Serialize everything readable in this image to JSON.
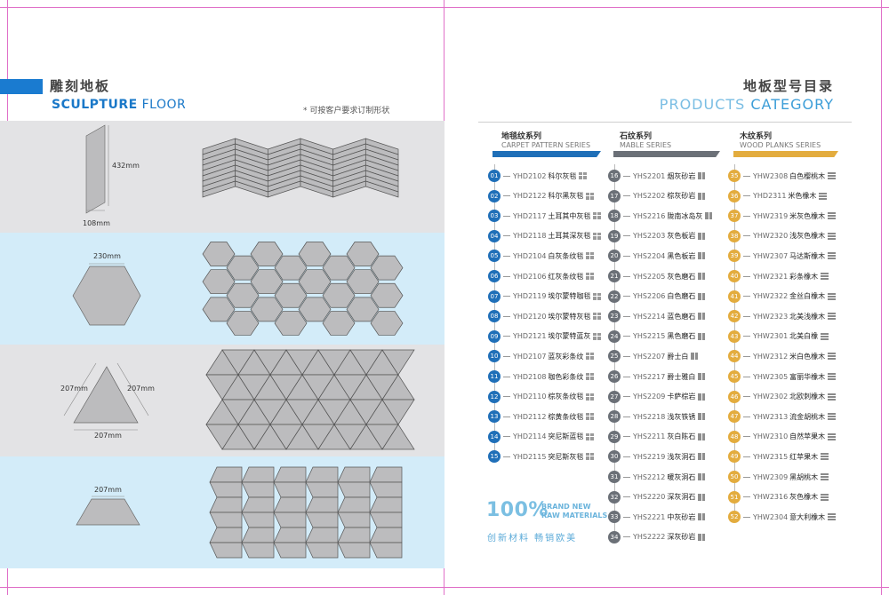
{
  "left": {
    "title_cn": "雕刻地板",
    "title_en_bold": "SCULPTURE",
    "title_en_light": " FLOOR",
    "custom_note": "* 可按客户要求订制形状",
    "dims": {
      "parallelogram_height": "432mm",
      "parallelogram_width": "108mm",
      "hexagon_width": "230mm",
      "triangle_left": "207mm",
      "triangle_right": "207mm",
      "triangle_base": "207mm",
      "trapezoid_width": "207mm"
    }
  },
  "right": {
    "title_cn": "地板型号目录",
    "title_en_light": "PRODUCTS ",
    "title_en_strong": "CATEGORY",
    "series": [
      {
        "cn": "地毯纹系列",
        "en": "CARPET PATTERN SERIES",
        "color": "#1f6fb8"
      },
      {
        "cn": "石纹系列",
        "en": "MABLE SERIES",
        "color": "#6b7077"
      },
      {
        "cn": "木纹系列",
        "en": "WOOD PLANKS SERIES",
        "color": "#e3ac3e"
      }
    ],
    "carpet_items": [
      {
        "num": "01",
        "code": "YHD2102",
        "name": "科尔灰毯"
      },
      {
        "num": "02",
        "code": "YHD2122",
        "name": "科尔黑灰毯"
      },
      {
        "num": "03",
        "code": "YHD2117",
        "name": "土耳其中灰毯"
      },
      {
        "num": "04",
        "code": "YHD2118",
        "name": "土耳其深灰毯"
      },
      {
        "num": "05",
        "code": "YHD2104",
        "name": "白灰条纹毯"
      },
      {
        "num": "06",
        "code": "YHD2106",
        "name": "红灰条纹毯"
      },
      {
        "num": "07",
        "code": "YHD2119",
        "name": "埃尔蒙特咖毯"
      },
      {
        "num": "08",
        "code": "YHD2120",
        "name": "埃尔蒙特灰毯"
      },
      {
        "num": "09",
        "code": "YHD2121",
        "name": "埃尔蒙特蓝灰"
      },
      {
        "num": "10",
        "code": "YHD2107",
        "name": "蓝灰彩条纹"
      },
      {
        "num": "11",
        "code": "YHD2108",
        "name": "咖色彩条纹"
      },
      {
        "num": "12",
        "code": "YHD2110",
        "name": "棕灰条纹毯"
      },
      {
        "num": "13",
        "code": "YHD2112",
        "name": "棕黄条纹毯"
      },
      {
        "num": "14",
        "code": "YHD2114",
        "name": "突尼斯蓝毯"
      },
      {
        "num": "15",
        "code": "YHD2115",
        "name": "突尼斯灰毯"
      }
    ],
    "stone_items": [
      {
        "num": "16",
        "code": "YHS2201",
        "name": "烟灰砂岩"
      },
      {
        "num": "17",
        "code": "YHS2202",
        "name": "棕灰砂岩"
      },
      {
        "num": "18",
        "code": "YHS2216",
        "name": "陇南冰岛灰"
      },
      {
        "num": "19",
        "code": "YHS2203",
        "name": "灰色板岩"
      },
      {
        "num": "20",
        "code": "YHS2204",
        "name": "黑色板岩"
      },
      {
        "num": "21",
        "code": "YHS2205",
        "name": "灰色磨石"
      },
      {
        "num": "22",
        "code": "YHS2206",
        "name": "白色磨石"
      },
      {
        "num": "23",
        "code": "YHS2214",
        "name": "蓝色磨石"
      },
      {
        "num": "24",
        "code": "YHS2215",
        "name": "黑色磨石"
      },
      {
        "num": "25",
        "code": "YHS2207",
        "name": "爵士白"
      },
      {
        "num": "26",
        "code": "YHS2217",
        "name": "爵士雅白"
      },
      {
        "num": "27",
        "code": "YHS2209",
        "name": "卡萨棕岩"
      },
      {
        "num": "28",
        "code": "YHS2218",
        "name": "浅灰铁锈"
      },
      {
        "num": "29",
        "code": "YHS2211",
        "name": "灰白陈石"
      },
      {
        "num": "30",
        "code": "YHS2219",
        "name": "浅灰洞石"
      },
      {
        "num": "31",
        "code": "YHS2212",
        "name": "暖灰洞石"
      },
      {
        "num": "32",
        "code": "YHS2220",
        "name": "深灰洞石"
      },
      {
        "num": "33",
        "code": "YHS2221",
        "name": "中灰砂岩"
      },
      {
        "num": "34",
        "code": "YHS2222",
        "name": "深灰砂岩"
      }
    ],
    "wood_items": [
      {
        "num": "35",
        "code": "YHW2308",
        "name": "白色樱桃木"
      },
      {
        "num": "36",
        "code": "YHD2311",
        "name": "米色橡木"
      },
      {
        "num": "37",
        "code": "YHW2319",
        "name": "米灰色橡木"
      },
      {
        "num": "38",
        "code": "YHW2320",
        "name": "浅灰色橡木"
      },
      {
        "num": "39",
        "code": "YHW2307",
        "name": "马达斯橡木"
      },
      {
        "num": "40",
        "code": "YHW2321",
        "name": "彩条橡木"
      },
      {
        "num": "41",
        "code": "YHW2322",
        "name": "金丝白橡木"
      },
      {
        "num": "42",
        "code": "YHW2323",
        "name": "北美浅橡木"
      },
      {
        "num": "43",
        "code": "YHW2301",
        "name": "北美白橡"
      },
      {
        "num": "44",
        "code": "YHW2312",
        "name": "米白色橡木"
      },
      {
        "num": "45",
        "code": "YHW2305",
        "name": "富丽华橡木"
      },
      {
        "num": "46",
        "code": "YHW2302",
        "name": "北欧刺橡木"
      },
      {
        "num": "47",
        "code": "YHW2313",
        "name": "流金胡桃木"
      },
      {
        "num": "48",
        "code": "YHW2310",
        "name": "自然苹果木"
      },
      {
        "num": "49",
        "code": "YHW2315",
        "name": "红苹果木"
      },
      {
        "num": "50",
        "code": "YHW2309",
        "name": "黑胡桃木"
      },
      {
        "num": "51",
        "code": "YHW2316",
        "name": "灰色橡木"
      },
      {
        "num": "52",
        "code": "YHW2304",
        "name": "意大利橡木"
      }
    ],
    "percent": "100%",
    "brand_line1": "BRAND NEW",
    "brand_line2": "RAW MATERIALS",
    "slogan": "创新材料  畅销欧美"
  },
  "colors": {
    "band_grey": "#e3e3e5",
    "band_blue": "#d3ecf9",
    "tile_fill": "#bcbcbe",
    "tile_stroke": "#555555"
  }
}
